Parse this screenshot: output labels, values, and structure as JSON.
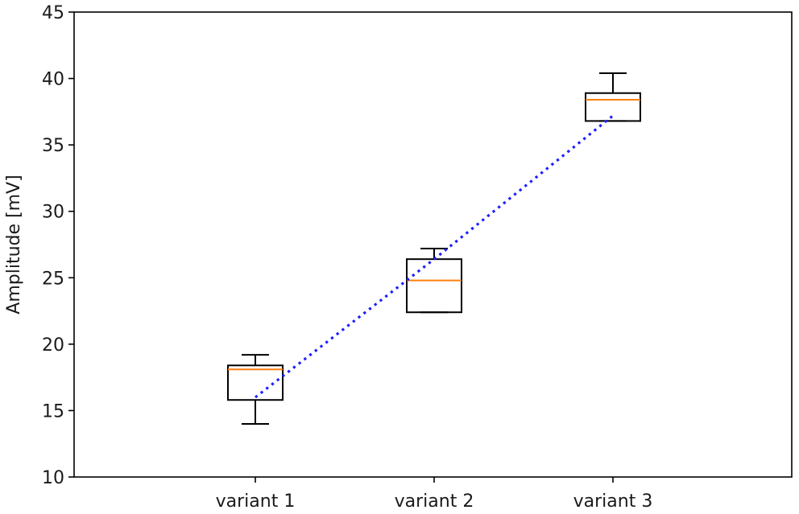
{
  "chart_data": {
    "type": "box",
    "title": "",
    "xlabel": "",
    "ylabel": "Amplitude [mV]",
    "ylim": [
      10,
      45
    ],
    "yticks": [
      10,
      15,
      20,
      25,
      30,
      35,
      40,
      45
    ],
    "grid": false,
    "categories": [
      "variant 1",
      "variant 2",
      "variant 3"
    ],
    "boxes": [
      {
        "whisker_low": 14.0,
        "q1": 15.8,
        "median": 18.1,
        "q3": 18.4,
        "whisker_high": 19.2
      },
      {
        "whisker_low": 22.4,
        "q1": 22.4,
        "median": 24.8,
        "q3": 26.4,
        "whisker_high": 27.2
      },
      {
        "whisker_low": 36.8,
        "q1": 36.8,
        "median": 38.4,
        "q3": 38.9,
        "whisker_high": 40.4
      }
    ],
    "trend_line": {
      "style": "dotted",
      "color": "#1f1fff",
      "y": [
        16.0,
        26.4,
        37.2
      ]
    },
    "colors": {
      "box": "#000000",
      "median": "#ff7f0e"
    }
  }
}
